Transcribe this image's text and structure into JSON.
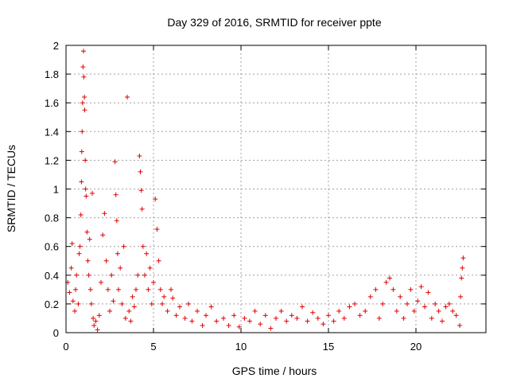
{
  "chart_data": {
    "type": "scatter",
    "title": "Day 329 of 2016, SRMTID for receiver ppte",
    "xlabel": "GPS time / hours",
    "ylabel": "SRMTID / TECUs",
    "xlim": [
      0,
      24
    ],
    "ylim": [
      0,
      2
    ],
    "xticks": [
      "0",
      "5",
      "10",
      "15",
      "20"
    ],
    "xtick_values": [
      0,
      5,
      10,
      15,
      20
    ],
    "yticks": [
      "0",
      "0.2",
      "0.4",
      "0.6",
      "0.8",
      "1",
      "1.2",
      "1.4",
      "1.6",
      "1.8",
      "2"
    ],
    "ytick_values": [
      0,
      0.2,
      0.4,
      0.6,
      0.8,
      1.0,
      1.2,
      1.4,
      1.6,
      1.8,
      2.0
    ],
    "grid": true,
    "marker": "+",
    "series_color": "#e00000",
    "series": [
      {
        "name": "SRMTID",
        "points": [
          [
            0.1,
            0.35
          ],
          [
            0.2,
            0.28
          ],
          [
            0.3,
            0.45
          ],
          [
            0.35,
            0.62
          ],
          [
            0.4,
            0.22
          ],
          [
            0.5,
            0.15
          ],
          [
            0.55,
            0.3
          ],
          [
            0.6,
            0.4
          ],
          [
            0.7,
            0.2
          ],
          [
            0.75,
            0.55
          ],
          [
            0.8,
            0.6
          ],
          [
            0.85,
            0.82
          ],
          [
            0.88,
            1.05
          ],
          [
            0.9,
            1.26
          ],
          [
            0.92,
            1.4
          ],
          [
            0.95,
            1.6
          ],
          [
            0.97,
            1.85
          ],
          [
            1.0,
            1.96
          ],
          [
            1.02,
            1.78
          ],
          [
            1.05,
            1.64
          ],
          [
            1.07,
            1.55
          ],
          [
            1.1,
            1.2
          ],
          [
            1.12,
            1.0
          ],
          [
            1.15,
            0.95
          ],
          [
            1.2,
            0.7
          ],
          [
            1.25,
            0.5
          ],
          [
            1.3,
            0.4
          ],
          [
            1.35,
            0.65
          ],
          [
            1.4,
            0.3
          ],
          [
            1.45,
            0.2
          ],
          [
            1.5,
            0.97
          ],
          [
            1.55,
            0.1
          ],
          [
            1.6,
            0.05
          ],
          [
            1.7,
            0.08
          ],
          [
            1.8,
            0.02
          ],
          [
            1.9,
            0.12
          ],
          [
            2.0,
            0.35
          ],
          [
            2.1,
            0.68
          ],
          [
            2.2,
            0.83
          ],
          [
            2.3,
            0.5
          ],
          [
            2.4,
            0.3
          ],
          [
            2.5,
            0.15
          ],
          [
            2.6,
            0.4
          ],
          [
            2.7,
            0.22
          ],
          [
            2.8,
            1.19
          ],
          [
            2.85,
            0.96
          ],
          [
            2.9,
            0.78
          ],
          [
            2.95,
            0.55
          ],
          [
            3.0,
            0.3
          ],
          [
            3.1,
            0.45
          ],
          [
            3.2,
            0.2
          ],
          [
            3.3,
            0.6
          ],
          [
            3.4,
            0.1
          ],
          [
            3.5,
            1.64
          ],
          [
            3.6,
            0.15
          ],
          [
            3.7,
            0.08
          ],
          [
            3.8,
            0.25
          ],
          [
            3.9,
            0.18
          ],
          [
            4.0,
            0.3
          ],
          [
            4.1,
            0.4
          ],
          [
            4.2,
            1.23
          ],
          [
            4.25,
            1.12
          ],
          [
            4.3,
            0.99
          ],
          [
            4.35,
            0.86
          ],
          [
            4.4,
            0.6
          ],
          [
            4.5,
            0.4
          ],
          [
            4.6,
            0.55
          ],
          [
            4.7,
            0.3
          ],
          [
            4.8,
            0.45
          ],
          [
            4.9,
            0.2
          ],
          [
            5.0,
            0.35
          ],
          [
            5.1,
            0.93
          ],
          [
            5.2,
            0.72
          ],
          [
            5.3,
            0.5
          ],
          [
            5.4,
            0.3
          ],
          [
            5.5,
            0.2
          ],
          [
            5.6,
            0.25
          ],
          [
            5.8,
            0.15
          ],
          [
            6.0,
            0.3
          ],
          [
            6.1,
            0.24
          ],
          [
            6.3,
            0.12
          ],
          [
            6.5,
            0.18
          ],
          [
            6.8,
            0.1
          ],
          [
            7.0,
            0.2
          ],
          [
            7.2,
            0.08
          ],
          [
            7.5,
            0.15
          ],
          [
            7.8,
            0.05
          ],
          [
            8.0,
            0.12
          ],
          [
            8.3,
            0.18
          ],
          [
            8.6,
            0.08
          ],
          [
            9.0,
            0.1
          ],
          [
            9.3,
            0.05
          ],
          [
            9.6,
            0.12
          ],
          [
            9.9,
            0.04
          ],
          [
            10.2,
            0.1
          ],
          [
            10.5,
            0.08
          ],
          [
            10.8,
            0.15
          ],
          [
            11.1,
            0.06
          ],
          [
            11.4,
            0.12
          ],
          [
            11.7,
            0.03
          ],
          [
            12.0,
            0.1
          ],
          [
            12.3,
            0.15
          ],
          [
            12.6,
            0.08
          ],
          [
            12.9,
            0.12
          ],
          [
            13.2,
            0.1
          ],
          [
            13.5,
            0.18
          ],
          [
            13.8,
            0.08
          ],
          [
            14.1,
            0.14
          ],
          [
            14.4,
            0.1
          ],
          [
            14.7,
            0.06
          ],
          [
            15.0,
            0.12
          ],
          [
            15.3,
            0.08
          ],
          [
            15.6,
            0.15
          ],
          [
            15.9,
            0.1
          ],
          [
            16.2,
            0.18
          ],
          [
            16.5,
            0.2
          ],
          [
            16.8,
            0.12
          ],
          [
            17.1,
            0.15
          ],
          [
            17.4,
            0.25
          ],
          [
            17.7,
            0.3
          ],
          [
            17.9,
            0.1
          ],
          [
            18.1,
            0.2
          ],
          [
            18.3,
            0.35
          ],
          [
            18.5,
            0.38
          ],
          [
            18.7,
            0.3
          ],
          [
            18.9,
            0.15
          ],
          [
            19.1,
            0.25
          ],
          [
            19.3,
            0.1
          ],
          [
            19.5,
            0.2
          ],
          [
            19.7,
            0.3
          ],
          [
            19.9,
            0.15
          ],
          [
            20.1,
            0.22
          ],
          [
            20.3,
            0.32
          ],
          [
            20.5,
            0.18
          ],
          [
            20.7,
            0.28
          ],
          [
            20.9,
            0.1
          ],
          [
            21.1,
            0.2
          ],
          [
            21.3,
            0.15
          ],
          [
            21.5,
            0.08
          ],
          [
            21.7,
            0.18
          ],
          [
            21.9,
            0.2
          ],
          [
            22.1,
            0.15
          ],
          [
            22.3,
            0.12
          ],
          [
            22.5,
            0.05
          ],
          [
            22.55,
            0.25
          ],
          [
            22.6,
            0.38
          ],
          [
            22.65,
            0.45
          ],
          [
            22.7,
            0.52
          ]
        ]
      }
    ]
  }
}
